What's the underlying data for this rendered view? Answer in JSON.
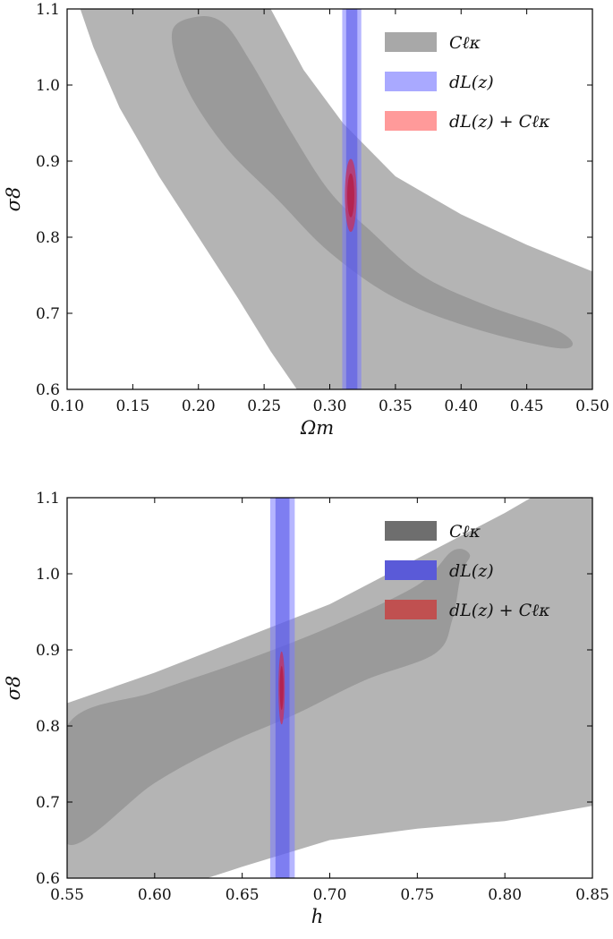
{
  "chart_data": [
    {
      "type": "contour",
      "xlabel": "Ωm",
      "ylabel": "σ8",
      "xlim": [
        0.1,
        0.5
      ],
      "ylim": [
        0.6,
        1.1
      ],
      "xticks": [
        "0.10",
        "0.15",
        "0.20",
        "0.25",
        "0.30",
        "0.35",
        "0.40",
        "0.45",
        "0.50"
      ],
      "yticks": [
        "0.6",
        "0.7",
        "0.8",
        "0.9",
        "1.0",
        "1.1"
      ],
      "legend_position": "top-right",
      "series": [
        {
          "name": "Cℓκ",
          "color": "#8c8c8c",
          "outer_contour": [
            [
              0.11,
              1.1
            ],
            [
              0.12,
              1.05
            ],
            [
              0.14,
              0.97
            ],
            [
              0.17,
              0.88
            ],
            [
              0.2,
              0.8
            ],
            [
              0.23,
              0.72
            ],
            [
              0.255,
              0.65
            ],
            [
              0.275,
              0.6
            ],
            [
              0.45,
              0.6
            ],
            [
              0.5,
              0.6
            ],
            [
              0.5,
              0.755
            ],
            [
              0.45,
              0.79
            ],
            [
              0.4,
              0.83
            ],
            [
              0.35,
              0.88
            ],
            [
              0.31,
              0.95
            ],
            [
              0.28,
              1.02
            ],
            [
              0.255,
              1.1
            ]
          ],
          "inner_contour": [
            [
              0.19,
              1.0
            ],
            [
              0.22,
              0.92
            ],
            [
              0.26,
              0.85
            ],
            [
              0.3,
              0.78
            ],
            [
              0.35,
              0.72
            ],
            [
              0.41,
              0.68
            ],
            [
              0.47,
              0.655
            ],
            [
              0.485,
              0.66
            ],
            [
              0.47,
              0.68
            ],
            [
              0.42,
              0.71
            ],
            [
              0.37,
              0.75
            ],
            [
              0.33,
              0.81
            ],
            [
              0.3,
              0.86
            ],
            [
              0.27,
              0.94
            ],
            [
              0.24,
              1.03
            ],
            [
              0.22,
              1.08
            ],
            [
              0.2,
              1.09
            ],
            [
              0.18,
              1.07
            ]
          ]
        },
        {
          "name": "dL(z)",
          "color": "#7070ff",
          "outer_band": [
            0.3095,
            0.324
          ],
          "inner_band": [
            0.3125,
            0.321
          ]
        },
        {
          "name": "dL(z) + Cℓκ",
          "color": "#ff6f6f",
          "ellipse": {
            "cx": 0.316,
            "cy": 0.855,
            "rx": 0.0045,
            "ry": 0.048
          }
        }
      ]
    },
    {
      "type": "contour",
      "xlabel": "h",
      "ylabel": "σ8",
      "xlim": [
        0.55,
        0.85
      ],
      "ylim": [
        0.6,
        1.1
      ],
      "xticks": [
        "0.55",
        "0.60",
        "0.65",
        "0.70",
        "0.75",
        "0.80",
        "0.85"
      ],
      "yticks": [
        "0.6",
        "0.7",
        "0.8",
        "0.9",
        "1.0",
        "1.1"
      ],
      "legend_position": "top-right",
      "series": [
        {
          "name": "Cℓκ",
          "color": "#8c8c8c",
          "outer_contour": [
            [
              0.55,
              0.6
            ],
            [
              0.55,
              0.83
            ],
            [
              0.6,
              0.87
            ],
            [
              0.65,
              0.915
            ],
            [
              0.7,
              0.96
            ],
            [
              0.75,
              1.02
            ],
            [
              0.8,
              1.08
            ],
            [
              0.815,
              1.1
            ],
            [
              0.85,
              1.1
            ],
            [
              0.85,
              0.695
            ],
            [
              0.8,
              0.675
            ],
            [
              0.75,
              0.665
            ],
            [
              0.7,
              0.65
            ],
            [
              0.65,
              0.615
            ],
            [
              0.63,
              0.6
            ]
          ],
          "inner_contour": [
            [
              0.55,
              0.645
            ],
            [
              0.55,
              0.8
            ],
            [
              0.6,
              0.845
            ],
            [
              0.65,
              0.885
            ],
            [
              0.7,
              0.93
            ],
            [
              0.75,
              0.985
            ],
            [
              0.77,
              1.03
            ],
            [
              0.78,
              1.025
            ],
            [
              0.775,
              1.0
            ],
            [
              0.77,
              0.94
            ],
            [
              0.76,
              0.895
            ],
            [
              0.72,
              0.86
            ],
            [
              0.68,
              0.815
            ],
            [
              0.64,
              0.775
            ],
            [
              0.6,
              0.725
            ]
          ]
        },
        {
          "name": "dL(z)",
          "color": "#7070ff",
          "outer_band": [
            0.666,
            0.68
          ],
          "inner_band": [
            0.669,
            0.677
          ]
        },
        {
          "name": "dL(z) + Cℓκ",
          "color": "#c85a5a",
          "ellipse": {
            "cx": 0.6725,
            "cy": 0.85,
            "rx": 0.0018,
            "ry": 0.048
          }
        }
      ]
    }
  ]
}
